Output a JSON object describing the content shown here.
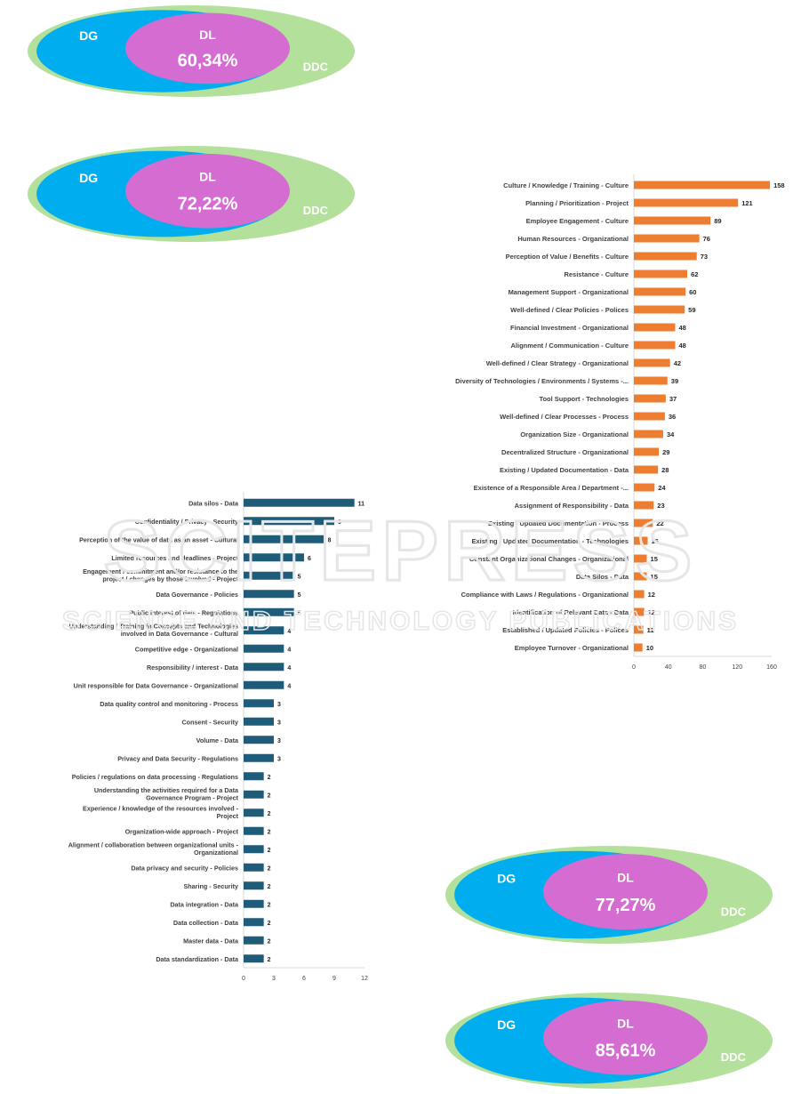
{
  "venns": [
    {
      "outer_label": "DDC",
      "middle_label": "DG",
      "inner_label": "DL",
      "percent": "60,34%"
    },
    {
      "outer_label": "DDC",
      "middle_label": "DG",
      "inner_label": "DL",
      "percent": "72,22%"
    },
    {
      "outer_label": "DDC",
      "middle_label": "DG",
      "inner_label": "DL",
      "percent": "77,27%"
    },
    {
      "outer_label": "DDC",
      "middle_label": "DG",
      "inner_label": "DL",
      "percent": "85,61%"
    }
  ],
  "colors": {
    "outer": "#b3e19c",
    "middle": "#00aeef",
    "inner": "#d56cd1",
    "orange_bar": "#ed7d31",
    "blue_bar": "#1f5c7a",
    "watermark": "#e6e6e6"
  },
  "watermark": {
    "line1": "SCITEPRESS",
    "line2": "SCIENCE AND TECHNOLOGY PUBLICATIONS"
  },
  "chart_data": [
    {
      "type": "bar",
      "orientation": "horizontal",
      "title": "",
      "xlabel": "",
      "ylabel": "",
      "xlim": [
        0,
        160
      ],
      "xticks": [
        0,
        40,
        80,
        120,
        160
      ],
      "color": "#ed7d31",
      "categories": [
        "Culture / Knowledge / Training - Culture",
        "Planning / Prioritization - Project",
        "Employee Engagement - Culture",
        "Human Resources - Organizational",
        "Perception of Value / Benefits - Culture",
        "Resistance - Culture",
        "Management Support - Organizational",
        "Well-defined / Clear Policies - Polices",
        "Financial Investment - Organizational",
        "Alignment / Communication - Culture",
        "Well-defined / Clear Strategy - Organizational",
        "Diversity of Technologies / Environments / Systems -...",
        "Tool Support - Technologies",
        "Well-defined / Clear Processes - Process",
        "Organization Size - Organizational",
        "Decentralized Structure - Organizational",
        "Existing / Updated Documentation - Data",
        "Existence of a Responsible Area / Department -...",
        "Assignment  of Responsibility - Data",
        "Existing / Updated Documentation - Process",
        "Existing / Updated Documentation - Technologies",
        "Constant Organizational Changes - Organizational",
        "Data Silos - Data",
        "Compliance with Laws / Regulations - Organizational",
        "Identification of Relevant Data - Data",
        "Established / Updated Policies - Polices",
        "Employee Turnover - Organizational"
      ],
      "values": [
        158,
        121,
        89,
        76,
        73,
        62,
        60,
        59,
        48,
        48,
        42,
        39,
        37,
        36,
        34,
        29,
        28,
        24,
        23,
        22,
        16,
        15,
        15,
        12,
        12,
        11,
        10
      ],
      "value_labels": [
        "158",
        "121",
        "89",
        "76",
        "73",
        "62",
        "60",
        "59",
        "48",
        "48",
        "42",
        "39",
        "37",
        "36",
        "34",
        "29",
        "28",
        "24",
        "23",
        "22",
        "16",
        "15",
        "15",
        "12",
        "12",
        "11",
        "10"
      ]
    },
    {
      "type": "bar",
      "orientation": "horizontal",
      "title": "",
      "xlabel": "",
      "ylabel": "",
      "xlim": [
        0,
        12
      ],
      "xticks": [
        0,
        3,
        6,
        9,
        12
      ],
      "color": "#1f5c7a",
      "categories": [
        [
          "Data silos - Data"
        ],
        [
          "Confidentiality / Privacy - Security"
        ],
        [
          "Perception of the value of data as an asset - Cultural"
        ],
        [
          "Limited resources and deadlines - Project"
        ],
        [
          "Engagement / commitment and/or resistance to the",
          "project / changes by those involved - Project"
        ],
        [
          "Data Governance - Policies"
        ],
        [
          "Public interest of data - Regulations"
        ],
        [
          "Understanding / Training in Concepts and Technologies",
          "involved in Data Governance - Cultural"
        ],
        [
          "Competitive edge - Organizational"
        ],
        [
          "Responsibility / interest - Data"
        ],
        [
          "Unit responsible for Data Governance - Organizational"
        ],
        [
          "Data quality control and monitoring - Process"
        ],
        [
          "Consent - Security"
        ],
        [
          "Volume  - Data"
        ],
        [
          "Privacy and Data Security - Regulations"
        ],
        [
          "Policies / regulations on data processing - Regulations"
        ],
        [
          "Understanding the activities required for a Data",
          "Governance Program - Project"
        ],
        [
          "Experience / knowledge of the resources involved -",
          "Project"
        ],
        [
          "Organization-wide approach - Project"
        ],
        [
          "Alignment / collaboration between organizational units -",
          "Organizational"
        ],
        [
          "Data privacy and security - Policies"
        ],
        [
          "Sharing - Security"
        ],
        [
          "Data integration - Data"
        ],
        [
          "Data collection - Data"
        ],
        [
          "Master data - Data"
        ],
        [
          "Data standardization - Data"
        ]
      ],
      "values": [
        11,
        9,
        8,
        6,
        5,
        5,
        5,
        4,
        4,
        4,
        4,
        3,
        3,
        3,
        3,
        2,
        2,
        2,
        2,
        2,
        2,
        2,
        2,
        2,
        2,
        2
      ],
      "value_labels": [
        "11",
        "9",
        "8",
        "6",
        "5",
        "5",
        "5",
        "4",
        "4",
        "4",
        "4",
        "3",
        "3",
        "3",
        "3",
        "2",
        "2",
        "2",
        "2",
        "2",
        "2",
        "2",
        "2",
        "2",
        "2",
        "2"
      ]
    }
  ]
}
